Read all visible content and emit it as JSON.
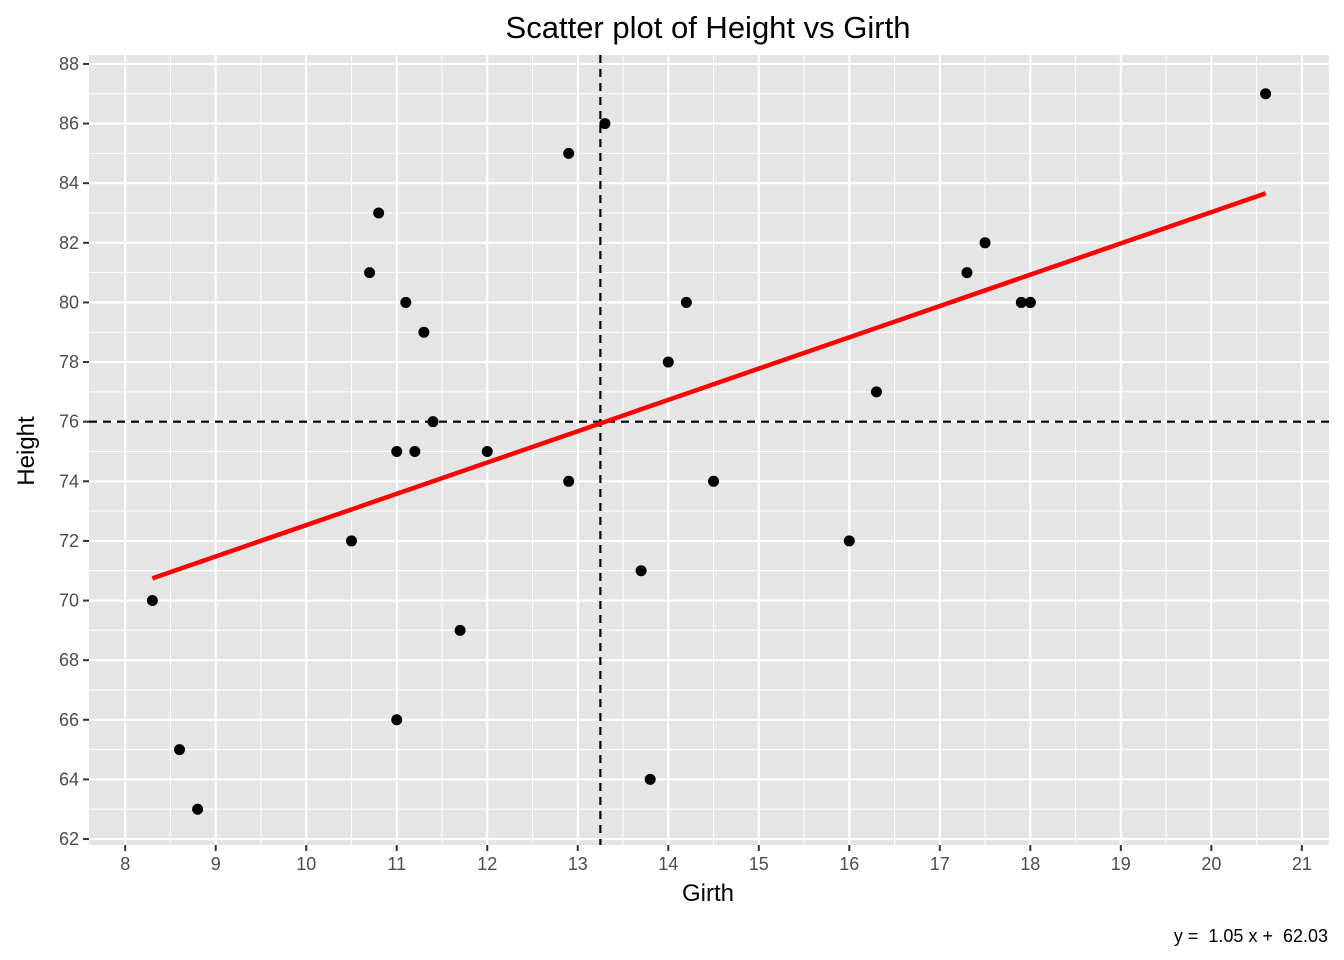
{
  "chart_data": {
    "type": "scatter",
    "title": "Scatter plot of Height vs Girth",
    "xlabel": "Girth",
    "ylabel": "Height",
    "caption": "y =  1.05 x +  62.03",
    "xlim": [
      7.6,
      21.3
    ],
    "ylim": [
      61.8,
      88.3
    ],
    "x_ticks": [
      8,
      9,
      10,
      11,
      12,
      13,
      14,
      15,
      16,
      17,
      18,
      19,
      20,
      21
    ],
    "y_ticks": [
      62,
      64,
      66,
      68,
      70,
      72,
      74,
      76,
      78,
      80,
      82,
      84,
      86,
      88
    ],
    "grid": true,
    "points": [
      {
        "x": 8.3,
        "y": 70
      },
      {
        "x": 8.6,
        "y": 65
      },
      {
        "x": 8.8,
        "y": 63
      },
      {
        "x": 10.5,
        "y": 72
      },
      {
        "x": 10.7,
        "y": 81
      },
      {
        "x": 10.8,
        "y": 83
      },
      {
        "x": 11.0,
        "y": 66
      },
      {
        "x": 11.0,
        "y": 75
      },
      {
        "x": 11.1,
        "y": 80
      },
      {
        "x": 11.2,
        "y": 75
      },
      {
        "x": 11.3,
        "y": 79
      },
      {
        "x": 11.4,
        "y": 76
      },
      {
        "x": 11.7,
        "y": 69
      },
      {
        "x": 12.0,
        "y": 75
      },
      {
        "x": 12.9,
        "y": 74
      },
      {
        "x": 12.9,
        "y": 85
      },
      {
        "x": 13.3,
        "y": 86
      },
      {
        "x": 13.7,
        "y": 71
      },
      {
        "x": 13.8,
        "y": 64
      },
      {
        "x": 14.0,
        "y": 78
      },
      {
        "x": 14.2,
        "y": 80
      },
      {
        "x": 14.5,
        "y": 74
      },
      {
        "x": 16.0,
        "y": 72
      },
      {
        "x": 16.3,
        "y": 77
      },
      {
        "x": 17.3,
        "y": 81
      },
      {
        "x": 17.5,
        "y": 82
      },
      {
        "x": 17.9,
        "y": 80
      },
      {
        "x": 18.0,
        "y": 80
      },
      {
        "x": 18.0,
        "y": 80
      },
      {
        "x": 20.6,
        "y": 87
      }
    ],
    "fit_line": {
      "slope": 1.05,
      "intercept": 62.03,
      "x_range": [
        8.3,
        20.6
      ],
      "color": "#ff0000"
    },
    "mean_x": 13.25,
    "mean_y": 76,
    "point_color": "#000000",
    "panel_background": "#e5e5e5",
    "grid_color": "#ffffff"
  }
}
